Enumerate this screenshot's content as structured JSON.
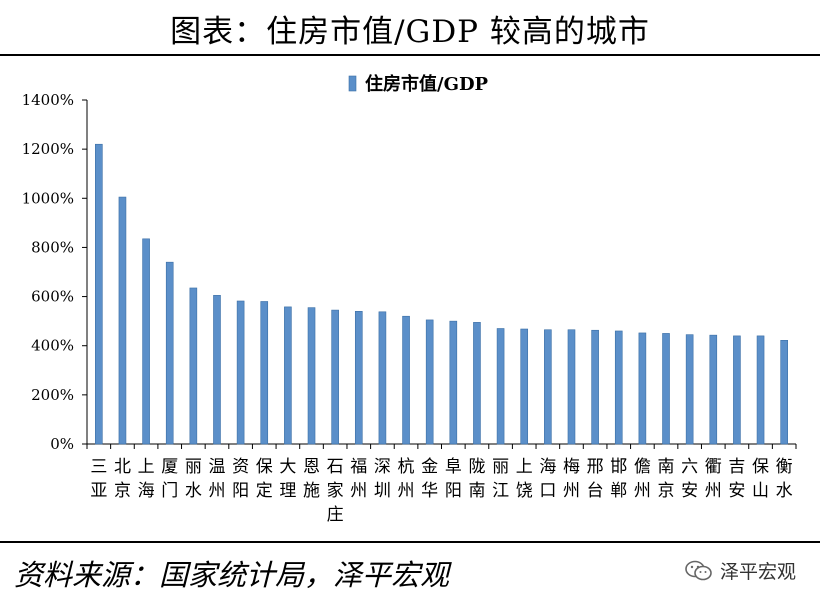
{
  "header": {
    "title": "图表：住房市值/GDP 较高的城市"
  },
  "footer": {
    "source": "资料来源：国家统计局，泽平宏观"
  },
  "watermark": {
    "text": "泽平宏观",
    "icon": "wechat-icon"
  },
  "colors": {
    "bar": "#5B8FC9",
    "bar_edge": "#3A6EA5",
    "axis": "#000000"
  },
  "chart_data": {
    "type": "bar",
    "title": "",
    "legend": {
      "label": "住房市值/GDP",
      "placement": "top-center"
    },
    "xlabel": "",
    "ylabel": "",
    "ylim": [
      0,
      14
    ],
    "yticks": [
      "0%",
      "200%",
      "400%",
      "600%",
      "800%",
      "1000%",
      "1200%",
      "1400%"
    ],
    "categories": [
      [
        "三",
        "亚"
      ],
      [
        "北",
        "京"
      ],
      [
        "上",
        "海"
      ],
      [
        "厦",
        "门"
      ],
      [
        "丽",
        "水"
      ],
      [
        "温",
        "州"
      ],
      [
        "资",
        "阳"
      ],
      [
        "保",
        "定"
      ],
      [
        "大",
        "理"
      ],
      [
        "恩",
        "施"
      ],
      [
        "石",
        "家",
        "庄"
      ],
      [
        "福",
        "州"
      ],
      [
        "深",
        "圳"
      ],
      [
        "杭",
        "州"
      ],
      [
        "金",
        "华"
      ],
      [
        "阜",
        "阳"
      ],
      [
        "陇",
        "南"
      ],
      [
        "丽",
        "江"
      ],
      [
        "上",
        "饶"
      ],
      [
        "海",
        "口"
      ],
      [
        "梅",
        "州"
      ],
      [
        "邢",
        "台"
      ],
      [
        "邯",
        "郸"
      ],
      [
        "儋",
        "州"
      ],
      [
        "南",
        "京"
      ],
      [
        "六",
        "安"
      ],
      [
        "衢",
        "州"
      ],
      [
        "吉",
        "安"
      ],
      [
        "保",
        "山"
      ],
      [
        "衡",
        "水"
      ]
    ],
    "values": [
      12.2,
      10.05,
      8.35,
      7.4,
      6.35,
      6.05,
      5.82,
      5.8,
      5.58,
      5.55,
      5.45,
      5.4,
      5.38,
      5.2,
      5.05,
      5.0,
      4.95,
      4.7,
      4.68,
      4.65,
      4.65,
      4.63,
      4.6,
      4.52,
      4.5,
      4.45,
      4.43,
      4.4,
      4.4,
      4.22
    ]
  }
}
